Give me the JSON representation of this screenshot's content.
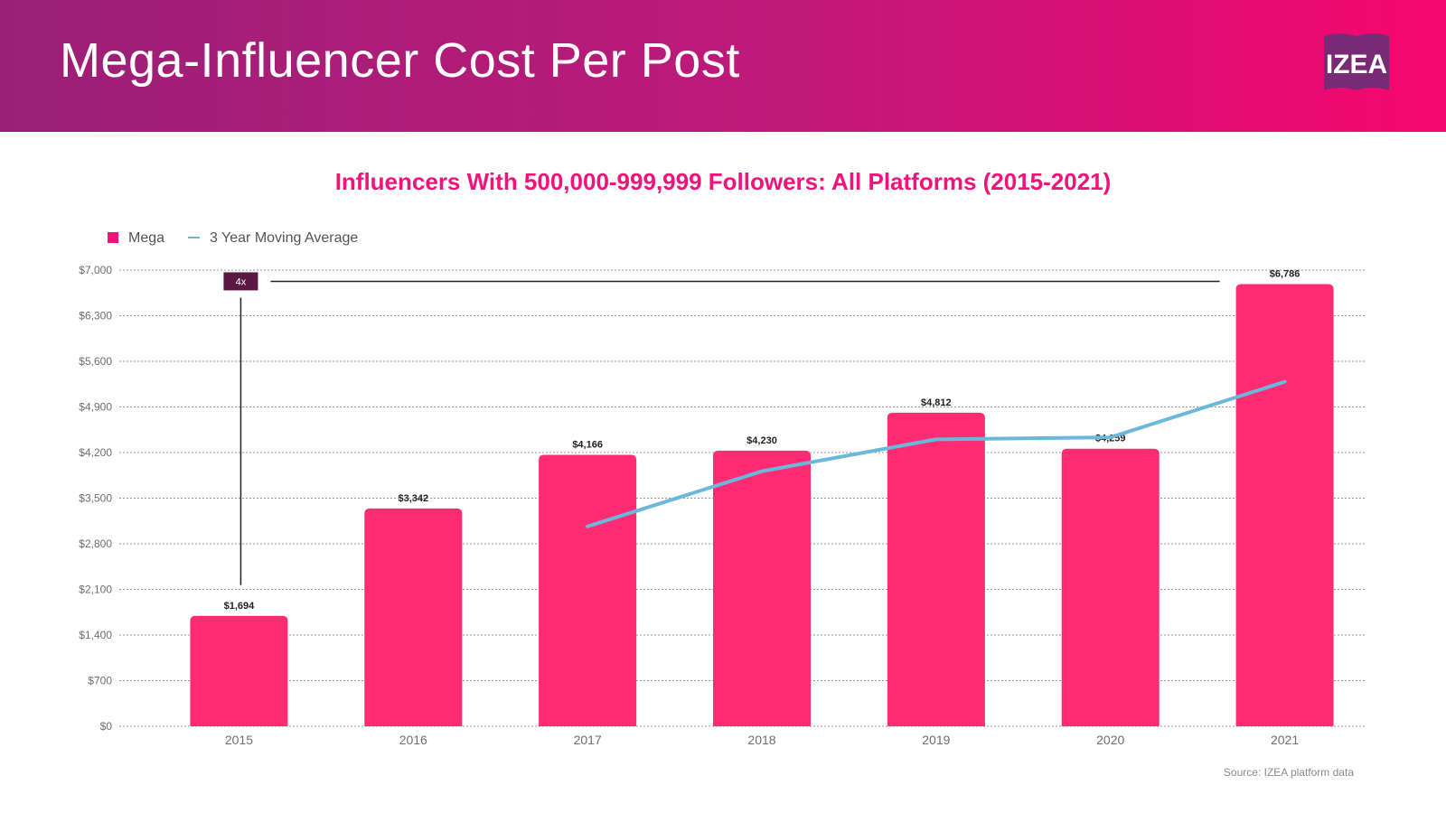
{
  "header": {
    "title": "Mega-Influencer Cost Per Post",
    "logo_text": "IZEA"
  },
  "source": "Source: IZEA platform data",
  "colors": {
    "bar": "#ff2b73",
    "line": "#6bb8db",
    "annotation": "#5a1843",
    "legend_square": "#f0147a"
  },
  "chart_data": {
    "type": "bar",
    "title": "Influencers With 500,000-999,999 Followers: All Platforms (2015-2021)",
    "xlabel": "",
    "ylabel": "",
    "categories": [
      "2015",
      "2016",
      "2017",
      "2018",
      "2019",
      "2020",
      "2021"
    ],
    "series": [
      {
        "name": "Mega",
        "type": "bar",
        "values": [
          1694,
          3342,
          4166,
          4230,
          4812,
          4259,
          6786
        ],
        "labels": [
          "$1,694",
          "$3,342",
          "$4,166",
          "$4,230",
          "$4,812",
          "$4,259",
          "$6,786"
        ]
      },
      {
        "name": "3 Year Moving Average",
        "type": "line",
        "values": [
          null,
          null,
          3067,
          3913,
          4403,
          4434,
          5286
        ]
      }
    ],
    "ylim": [
      0,
      7000
    ],
    "yticks": [
      0,
      700,
      1400,
      2100,
      2800,
      3500,
      4200,
      4900,
      5600,
      6300,
      7000
    ],
    "ytick_labels": [
      "$0",
      "$700",
      "$1,400",
      "$2,100",
      "$2,800",
      "$3,500",
      "$4,200",
      "$4,900",
      "$5,600",
      "$6,300",
      "$7,000"
    ],
    "grid": true,
    "legend_position": "top-left",
    "annotations": [
      {
        "text": "4x",
        "from": "2015",
        "to": "2021"
      }
    ]
  }
}
